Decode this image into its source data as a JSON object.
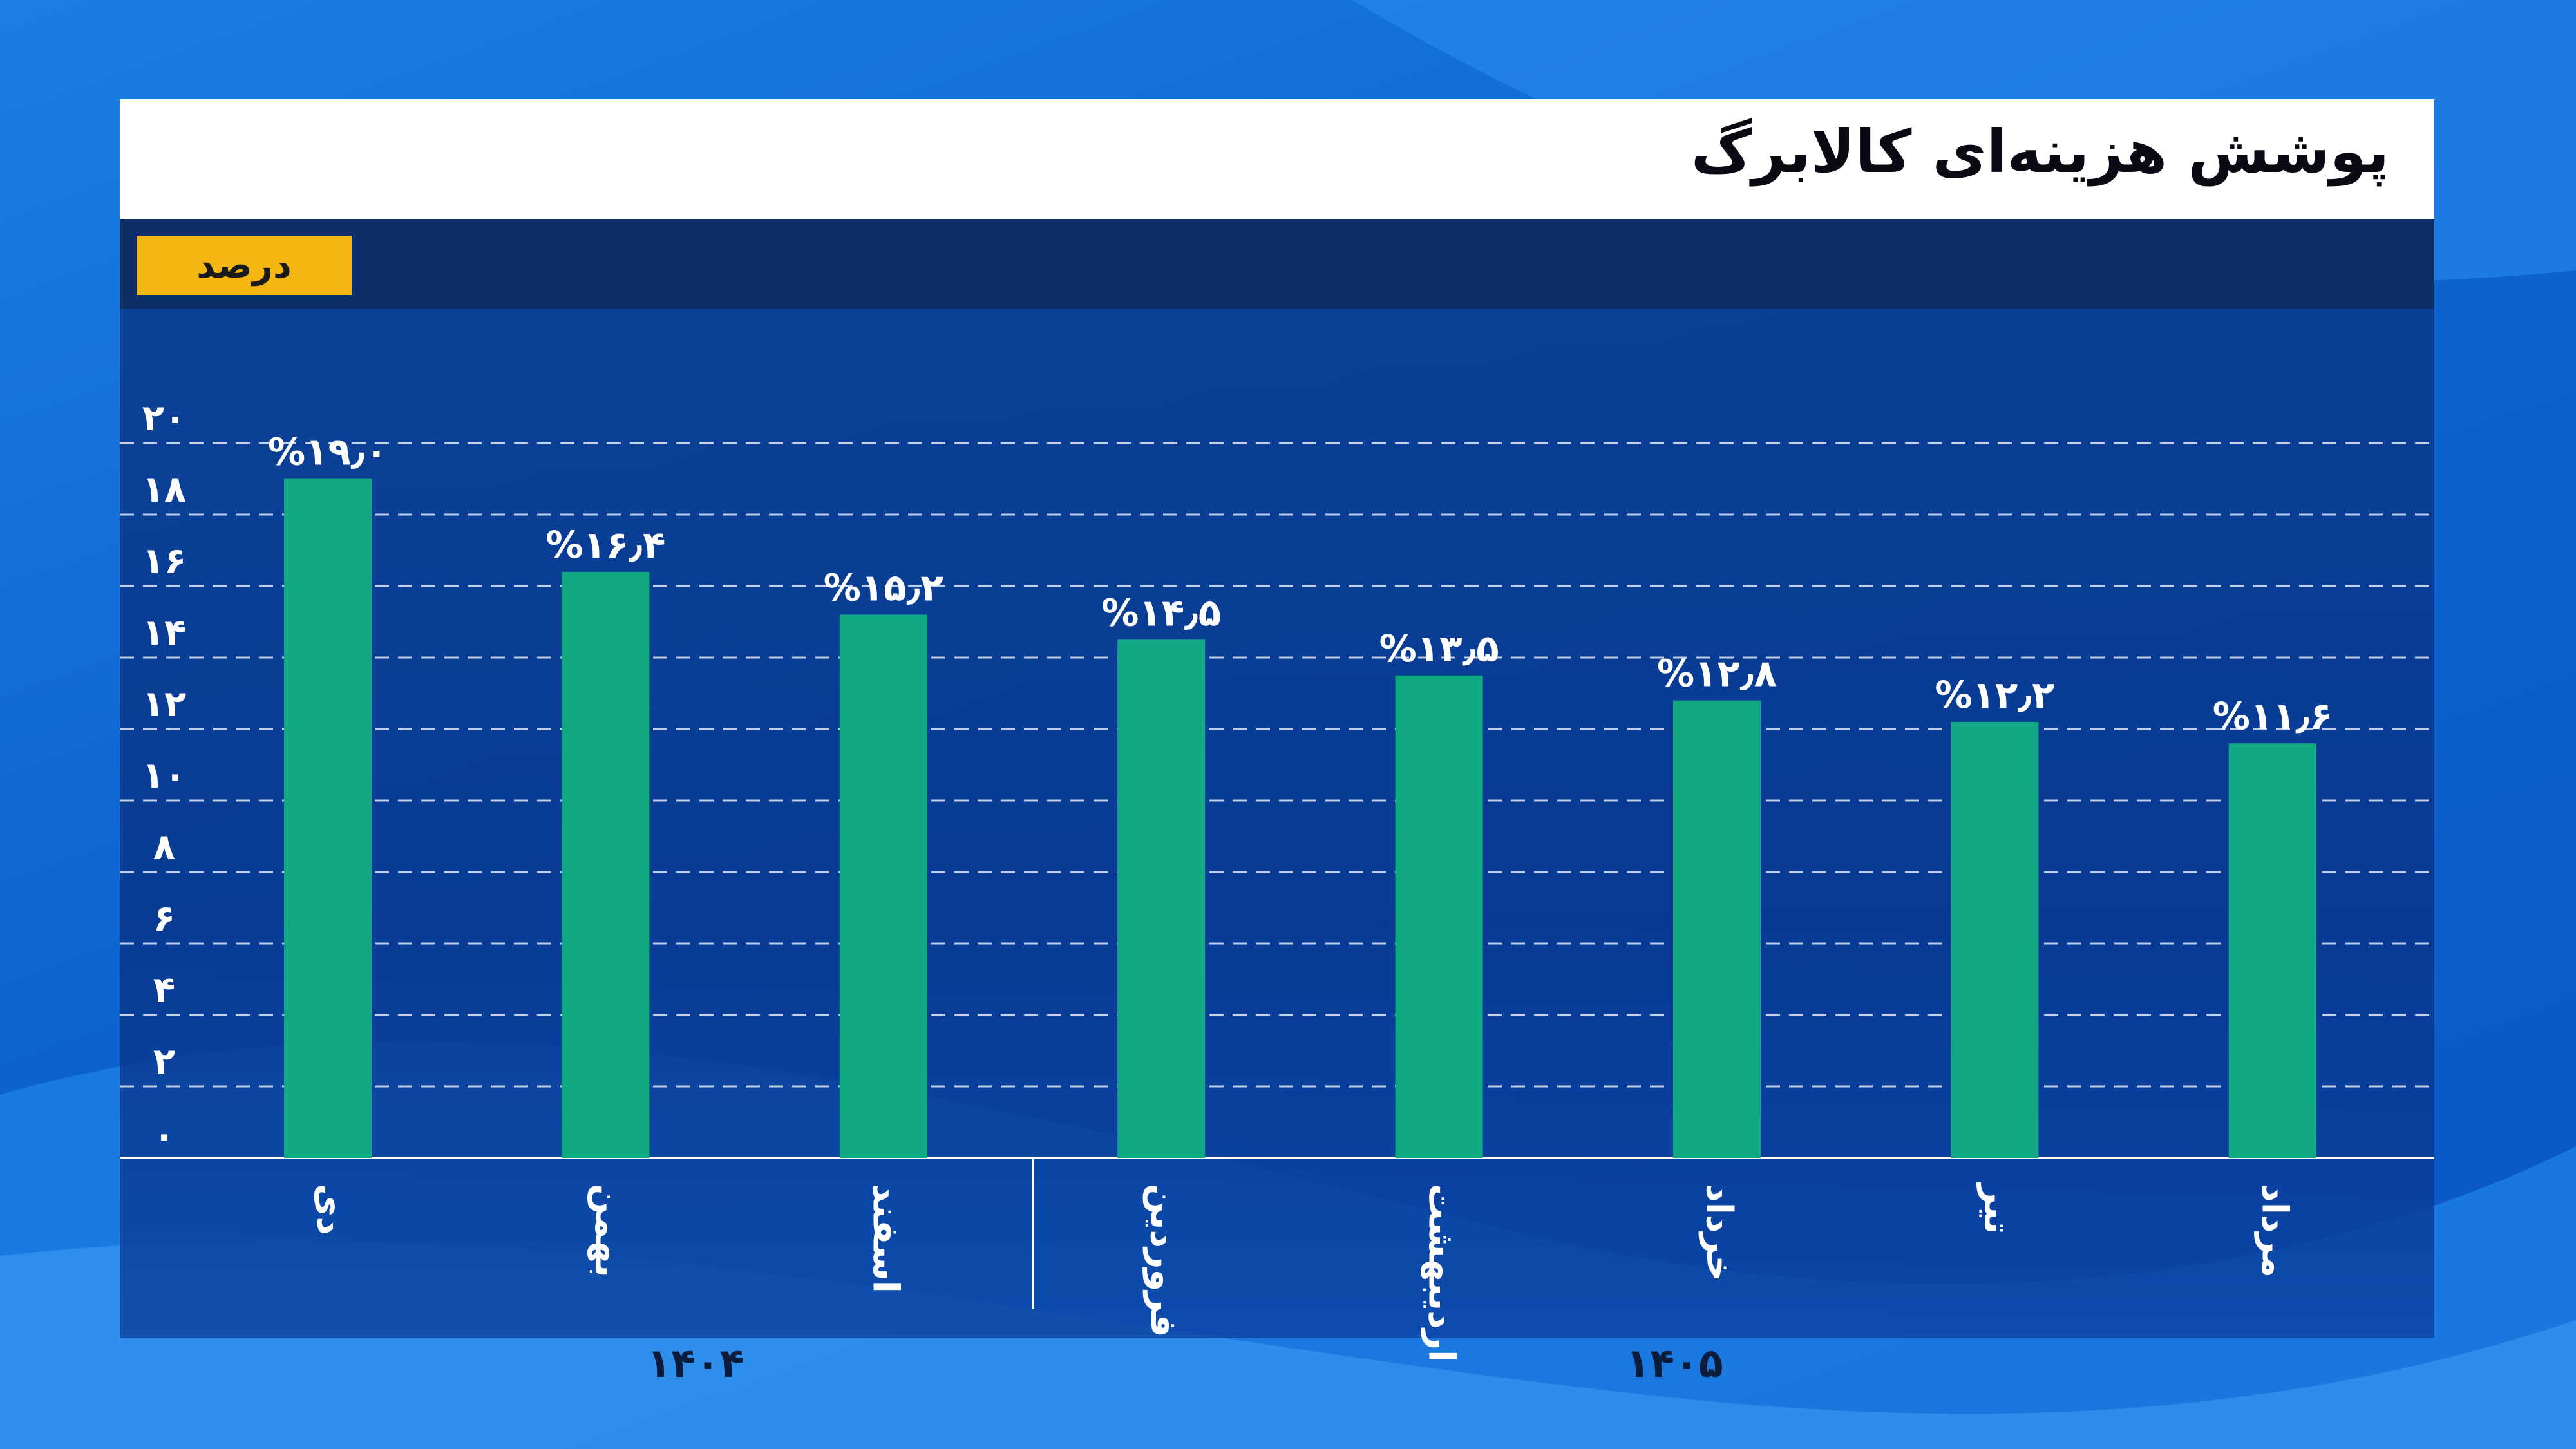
{
  "title": "پوشش هزینه‌ای کالابرگ",
  "unit": "درصد",
  "colors": {
    "bar": "#10a984",
    "grid": "#ffffff",
    "title_bg": "#ffffff",
    "unit_badge": "#f4b610"
  },
  "chart_data": {
    "type": "bar",
    "title": "پوشش هزینه‌ای کالابرگ",
    "ylabel": "درصد",
    "xlabel": "",
    "ylim": [
      0,
      20
    ],
    "yticks": [
      "۰",
      "۲",
      "۴",
      "۶",
      "۸",
      "۱۰",
      "۱۲",
      "۱۴",
      "۱۶",
      "۱۸",
      "۲۰"
    ],
    "grid": true,
    "categories": [
      "دی",
      "بهمن",
      "اسفند",
      "فروردین",
      "اردیبهشت",
      "خرداد",
      "تیر",
      "مرداد"
    ],
    "values": [
      19.0,
      16.4,
      15.2,
      14.5,
      13.5,
      12.8,
      12.2,
      11.6
    ],
    "data_labels": [
      "%۱۹٫۰",
      "%۱۶٫۴",
      "%۱۵٫۲",
      "%۱۴٫۵",
      "%۱۳٫۵",
      "%۱۲٫۸",
      "%۱۲٫۲",
      "%۱۱٫۶"
    ],
    "groups": [
      {
        "label": "۱۴۰۴",
        "categories": [
          "دی",
          "بهمن",
          "اسفند"
        ]
      },
      {
        "label": "۱۴۰۵",
        "categories": [
          "فروردین",
          "اردیبهشت",
          "خرداد",
          "تیر",
          "مرداد"
        ]
      }
    ]
  }
}
